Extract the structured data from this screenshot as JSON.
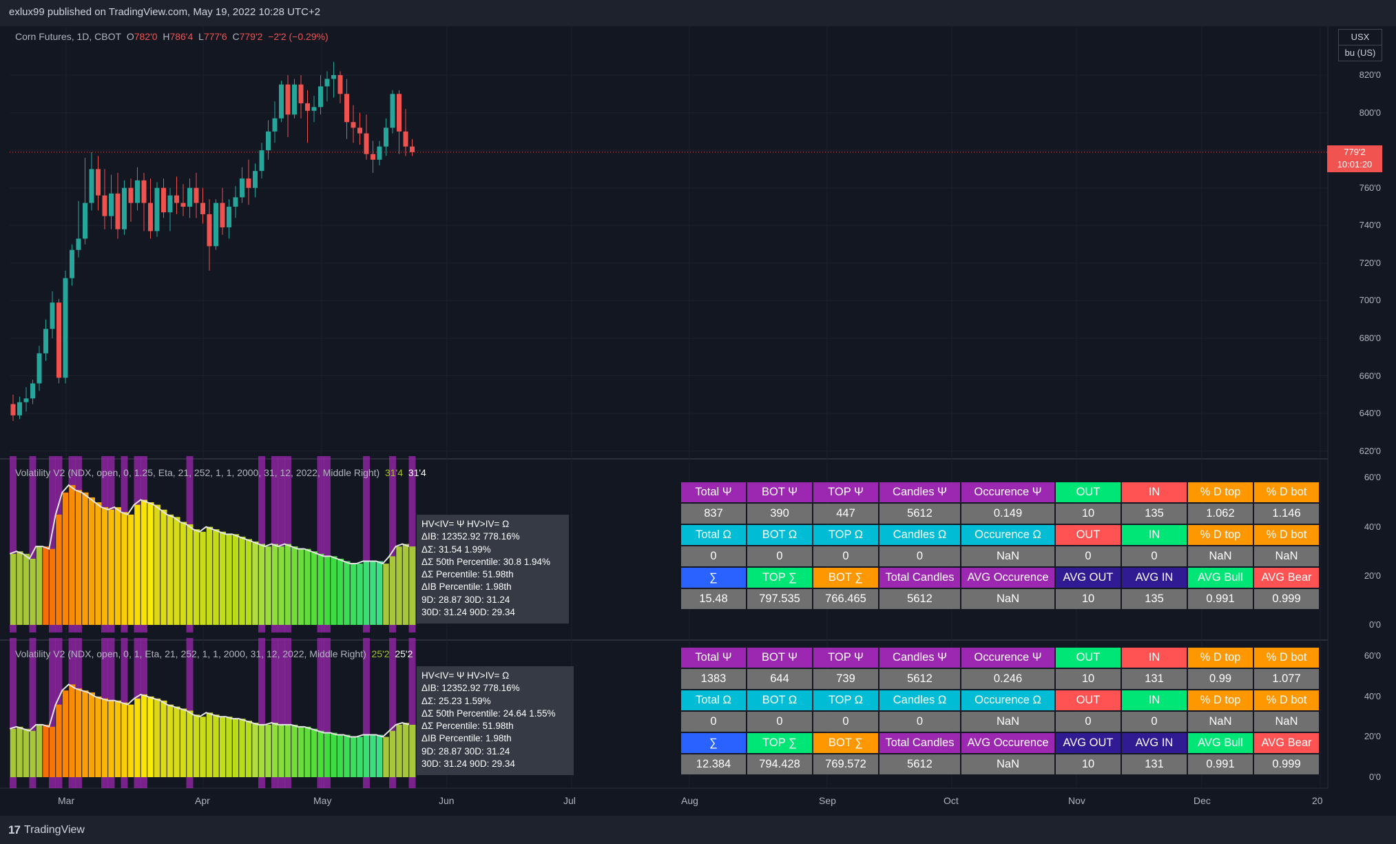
{
  "header": {
    "published": "exlux99 published on TradingView.com, May 19, 2022 10:28 UTC+2"
  },
  "footer": {
    "brand": "TradingView",
    "logo_mark": "17"
  },
  "main_chart": {
    "symbol": "Corn Futures, 1D, CBOT",
    "ohlc": {
      "o_label": "O",
      "o": "782'0",
      "h_label": "H",
      "h": "786'4",
      "l_label": "L",
      "l": "777'6",
      "c_label": "C",
      "c": "779'2",
      "change": "−2'2 (−0.29%)"
    },
    "unit_currency": "USX",
    "unit_measure": "bu (US)",
    "current_price": "779'2",
    "countdown": "10:01:20",
    "price_axis": [
      "820'0",
      "800'0",
      "780'0",
      "760'0",
      "740'0",
      "720'0",
      "700'0",
      "680'0",
      "660'0",
      "640'0",
      "620'0"
    ]
  },
  "pane1": {
    "legend": "Volatility V2 (NDX, open, 0, 1.25, Eta, 21, 252, 1, 1, 2000, 31, 12, 2022, Middle Right)",
    "value1": "31'4",
    "value2": "31'4",
    "axis": [
      "60'0",
      "40'0",
      "20'0",
      "0'0"
    ],
    "tooltip": [
      "HV<IV= Ψ  HV>IV= Ω",
      "ΔIB: 12352.92  778.16%",
      "ΔΣ: 31.54  1.99%",
      "ΔΣ 50th Percentile: 30.8  1.94%",
      "ΔΣ Percentile: 51.98th",
      "ΔIB Percentile: 1.98th",
      "9D: 28.87  30D: 31.24",
      "30D: 31.24  90D: 29.34"
    ],
    "table": [
      [
        "Total Ψ",
        "BOT Ψ",
        "TOP Ψ",
        "Candles Ψ",
        "Occurence Ψ",
        "OUT",
        "IN",
        "% D top",
        "% D bot"
      ],
      [
        "837",
        "390",
        "447",
        "5612",
        "0.149",
        "10",
        "135",
        "1.062",
        "1.146"
      ],
      [
        "Total Ω",
        "BOT Ω",
        "TOP Ω",
        "Candles Ω",
        "Occurence Ω",
        "OUT",
        "IN",
        "% D top",
        "% D bot"
      ],
      [
        "0",
        "0",
        "0",
        "0",
        "NaN",
        "0",
        "0",
        "NaN",
        "NaN"
      ],
      [
        "∑",
        "TOP ∑",
        "BOT ∑",
        "Total Candles",
        "AVG Occurence",
        "AVG OUT",
        "AVG IN",
        "AVG Bull",
        "AVG Bear"
      ],
      [
        "15.48",
        "797.535",
        "766.465",
        "5612",
        "NaN",
        "10",
        "135",
        "0.991",
        "0.999"
      ]
    ]
  },
  "pane2": {
    "legend": "Volatility V2 (NDX, open, 0, 1, Eta, 21, 252, 1, 1, 2000, 31, 12, 2022, Middle Right)",
    "value1": "25'2",
    "value2": "25'2",
    "axis": [
      "60'0",
      "40'0",
      "20'0",
      "0'0"
    ],
    "tooltip": [
      "HV<IV= Ψ  HV>IV= Ω",
      "ΔIB: 12352.92  778.16%",
      "ΔΣ: 25.23  1.59%",
      "ΔΣ 50th Percentile: 24.64  1.55%",
      "ΔΣ Percentile: 51.98th",
      "ΔIB Percentile: 1.98th",
      "9D: 28.87  30D: 31.24",
      "30D: 31.24  90D: 29.34"
    ],
    "table": [
      [
        "Total Ψ",
        "BOT Ψ",
        "TOP Ψ",
        "Candles Ψ",
        "Occurence Ψ",
        "OUT",
        "IN",
        "% D top",
        "% D bot"
      ],
      [
        "1383",
        "644",
        "739",
        "5612",
        "0.246",
        "10",
        "131",
        "0.99",
        "1.077"
      ],
      [
        "Total Ω",
        "BOT Ω",
        "TOP Ω",
        "Candles Ω",
        "Occurence Ω",
        "OUT",
        "IN",
        "% D top",
        "% D bot"
      ],
      [
        "0",
        "0",
        "0",
        "0",
        "NaN",
        "0",
        "0",
        "NaN",
        "NaN"
      ],
      [
        "∑",
        "TOP ∑",
        "BOT ∑",
        "Total Candles",
        "AVG Occurence",
        "AVG OUT",
        "AVG IN",
        "AVG Bull",
        "AVG Bear"
      ],
      [
        "12.384",
        "794.428",
        "769.572",
        "5612",
        "NaN",
        "10",
        "131",
        "0.991",
        "0.999"
      ]
    ]
  },
  "table_colors": {
    "header_rows": [
      [
        "#9c27b0",
        "#9c27b0",
        "#9c27b0",
        "#9c27b0",
        "#9c27b0",
        "#00e676",
        "#ff5252",
        "#ff9800",
        "#ff9800"
      ],
      [
        "#00bcd4",
        "#00bcd4",
        "#00bcd4",
        "#00bcd4",
        "#00bcd4",
        "#ff5252",
        "#00e676",
        "#ff9800",
        "#ff9800"
      ],
      [
        "#2962ff",
        "#00e676",
        "#ff9800",
        "#9c27b0",
        "#9c27b0",
        "#311b92",
        "#311b92",
        "#00e676",
        "#ff5252"
      ]
    ]
  },
  "x_axis": [
    "Mar",
    "Apr",
    "May",
    "Jun",
    "Jul",
    "Aug",
    "Sep",
    "Oct",
    "Nov",
    "Dec",
    "20"
  ],
  "colors": {
    "up": "#26a69a",
    "down": "#ef5350",
    "background": "#131722",
    "highlight": "#9c27b0"
  },
  "chart_data": [
    {
      "type": "candlestick",
      "title": "Corn Futures, 1D, CBOT",
      "ylim": [
        615,
        830
      ],
      "values": [
        [
          645,
          650,
          636,
          639
        ],
        [
          639,
          649,
          637,
          646
        ],
        [
          646,
          654,
          641,
          648
        ],
        [
          648,
          658,
          645,
          656
        ],
        [
          656,
          676,
          652,
          672
        ],
        [
          672,
          690,
          668,
          685
        ],
        [
          685,
          705,
          680,
          699
        ],
        [
          699,
          701,
          656,
          659
        ],
        [
          659,
          716,
          656,
          712
        ],
        [
          712,
          730,
          708,
          727
        ],
        [
          727,
          753,
          723,
          733
        ],
        [
          733,
          776,
          730,
          752
        ],
        [
          752,
          779,
          748,
          770
        ],
        [
          770,
          777,
          748,
          756
        ],
        [
          756,
          770,
          738,
          745
        ],
        [
          745,
          767,
          738,
          757
        ],
        [
          757,
          768,
          733,
          738
        ],
        [
          738,
          764,
          735,
          760
        ],
        [
          760,
          765,
          742,
          752
        ],
        [
          752,
          771,
          748,
          764
        ],
        [
          764,
          768,
          737,
          752
        ],
        [
          752,
          765,
          733,
          737
        ],
        [
          737,
          763,
          734,
          760
        ],
        [
          760,
          765,
          744,
          747
        ],
        [
          747,
          760,
          737,
          756
        ],
        [
          756,
          766,
          746,
          752
        ],
        [
          752,
          762,
          745,
          750
        ],
        [
          750,
          765,
          744,
          760
        ],
        [
          760,
          768,
          744,
          752
        ],
        [
          752,
          760,
          741,
          746
        ],
        [
          746,
          754,
          716,
          729
        ],
        [
          729,
          754,
          727,
          752
        ],
        [
          752,
          760,
          735,
          739
        ],
        [
          739,
          754,
          733,
          750
        ],
        [
          750,
          761,
          744,
          755
        ],
        [
          755,
          771,
          752,
          765
        ],
        [
          765,
          775,
          751,
          760
        ],
        [
          760,
          773,
          755,
          769
        ],
        [
          769,
          784,
          765,
          780
        ],
        [
          780,
          796,
          775,
          790
        ],
        [
          790,
          806,
          784,
          797
        ],
        [
          797,
          817,
          795,
          815
        ],
        [
          815,
          820,
          787,
          799
        ],
        [
          799,
          818,
          797,
          815
        ],
        [
          815,
          820,
          797,
          805
        ],
        [
          805,
          812,
          784,
          801
        ],
        [
          801,
          809,
          795,
          803
        ],
        [
          803,
          820,
          799,
          814
        ],
        [
          814,
          822,
          806,
          818
        ],
        [
          818,
          827,
          808,
          820
        ],
        [
          820,
          822,
          805,
          810
        ],
        [
          810,
          818,
          786,
          795
        ],
        [
          795,
          804,
          784,
          792
        ],
        [
          792,
          800,
          783,
          789
        ],
        [
          789,
          799,
          775,
          778
        ],
        [
          778,
          785,
          768,
          775
        ],
        [
          775,
          785,
          772,
          782
        ],
        [
          782,
          797,
          777,
          792
        ],
        [
          792,
          812,
          789,
          810
        ],
        [
          810,
          812,
          778,
          790
        ],
        [
          790,
          802,
          777,
          782
        ],
        [
          782,
          786,
          777,
          779
        ]
      ]
    },
    {
      "type": "area",
      "title": "Volatility V2 (NDX, open, 0, 1.25, Eta, 21, 252, 1, 1, 2000, 31, 12, 2022, Middle Right)",
      "ylim": [
        0,
        68
      ],
      "values": [
        29,
        30,
        29,
        27,
        32,
        32,
        31,
        45,
        54,
        57,
        55,
        54,
        52,
        50,
        48,
        47,
        48,
        46,
        45,
        49,
        51,
        50,
        49,
        47,
        45,
        44,
        42,
        41,
        39,
        38,
        40,
        39,
        38,
        37,
        37,
        36,
        35,
        34,
        33,
        32,
        33,
        32,
        33,
        32,
        31,
        31,
        30,
        29,
        28,
        28,
        27,
        26,
        25,
        25,
        26,
        26,
        26,
        25,
        28,
        32,
        33,
        32
      ]
    },
    {
      "type": "area",
      "title": "Volatility V2 (NDX, open, 0, 1, Eta, 21, 252, 1, 1, 2000, 31, 12, 2022, Middle Right)",
      "ylim": [
        0,
        68
      ],
      "values": [
        24,
        25,
        24,
        23,
        26,
        26,
        25,
        36,
        43,
        46,
        44,
        43,
        42,
        40,
        39,
        38,
        38,
        37,
        36,
        39,
        41,
        40,
        39,
        38,
        36,
        35,
        34,
        33,
        31,
        30,
        32,
        31,
        30,
        30,
        29,
        29,
        28,
        27,
        26,
        26,
        27,
        26,
        26,
        26,
        25,
        25,
        24,
        23,
        22,
        22,
        21,
        21,
        20,
        20,
        21,
        21,
        21,
        20,
        23,
        26,
        27,
        26
      ]
    }
  ]
}
